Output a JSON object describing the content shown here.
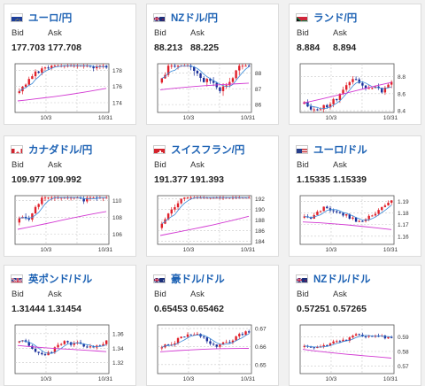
{
  "ui": {
    "bid_label": "Bid",
    "ask_label": "Ask"
  },
  "cards": [
    {
      "pair": "ユーロ/円",
      "flag": "flag-eu-icon",
      "bid": "177.703",
      "ask": "177.708",
      "yticks": [
        "178",
        "176",
        "174"
      ],
      "ylim": [
        172.8,
        178.8
      ],
      "xticks": [
        "10/3",
        "10/31"
      ],
      "open_start": 175.2,
      "drift": 0.12,
      "seed": 3,
      "wave": 1.1,
      "ma": [
        174.2,
        175.8
      ]
    },
    {
      "pair": "NZドル/円",
      "flag": "flag-nz-icon",
      "bid": "88.213",
      "ask": "88.225",
      "yticks": [
        "88",
        "87",
        "86"
      ],
      "ylim": [
        85.5,
        88.6
      ],
      "xticks": [
        "10/3",
        "10/31"
      ],
      "open_start": 87.4,
      "drift": 0.03,
      "seed": 7,
      "wave": 0.9,
      "ma": [
        86.9,
        87.4
      ]
    },
    {
      "pair": "ランド/円",
      "flag": "flag-za-icon",
      "bid": "8.884",
      "ask": "8.894",
      "yticks": [
        "8.8",
        "8.6",
        "8.4"
      ],
      "ylim": [
        8.38,
        8.95
      ],
      "xticks": [
        "10/3",
        "10/31"
      ],
      "open_start": 8.48,
      "drift": 0.014,
      "seed": 11,
      "wave": 0.12,
      "ma": [
        8.5,
        8.72
      ]
    },
    {
      "pair": "カナダドル/円",
      "flag": "flag-ca-icon",
      "bid": "109.977",
      "ask": "109.992",
      "yticks": [
        "110",
        "108",
        "106"
      ],
      "ylim": [
        104.8,
        110.6
      ],
      "xticks": [
        "10/3",
        "10/31"
      ],
      "open_start": 107.4,
      "drift": 0.1,
      "seed": 5,
      "wave": 1.2,
      "ma": [
        106.7,
        108.6
      ]
    },
    {
      "pair": "スイスフラン/円",
      "flag": "flag-ch-icon",
      "bid": "191.377",
      "ask": "191.393",
      "yticks": [
        "192",
        "190",
        "188",
        "186",
        "184"
      ],
      "ylim": [
        183.4,
        192.6
      ],
      "xticks": [
        "10/3",
        "10/31"
      ],
      "open_start": 186.5,
      "drift": 0.18,
      "seed": 9,
      "wave": 1.6,
      "ma": [
        185.0,
        188.8
      ]
    },
    {
      "pair": "ユーロ/ドル",
      "flag": "flag-us-icon",
      "bid": "1.15335",
      "ask": "1.15339",
      "yticks": [
        "1.19",
        "1.18",
        "1.17",
        "1.16"
      ],
      "ylim": [
        1.153,
        1.195
      ],
      "xticks": [
        "10/3",
        "10/31"
      ],
      "open_start": 1.176,
      "drift": -0.0006,
      "seed": 13,
      "wave": 0.006,
      "ma": [
        1.172,
        1.166
      ]
    },
    {
      "pair": "英ポンド/ドル",
      "flag": "flag-gb-icon",
      "bid": "1.31444",
      "ask": "1.31454",
      "yticks": [
        "1.36",
        "1.34",
        "1.32"
      ],
      "ylim": [
        1.305,
        1.372
      ],
      "xticks": [
        "10/3",
        "10/31"
      ],
      "open_start": 1.348,
      "drift": -0.0012,
      "seed": 17,
      "wave": 0.01,
      "ma": [
        1.345,
        1.334
      ]
    },
    {
      "pair": "豪ドル/ドル",
      "flag": "flag-au-icon",
      "bid": "0.65453",
      "ask": "0.65462",
      "yticks": [
        "0.67",
        "0.66",
        "0.65"
      ],
      "ylim": [
        0.645,
        0.672
      ],
      "xticks": [
        "10/3",
        "10/31"
      ],
      "open_start": 0.659,
      "drift": 0.0001,
      "seed": 19,
      "wave": 0.004,
      "ma": [
        0.657,
        0.659
      ]
    },
    {
      "pair": "NZドル/ドル",
      "flag": "flag-nz-icon",
      "bid": "0.57251",
      "ask": "0.57265",
      "yticks": [
        "0.59",
        "0.58",
        "0.57"
      ],
      "ylim": [
        0.565,
        0.598
      ],
      "xticks": [
        "10/3",
        "10/31"
      ],
      "open_start": 0.583,
      "drift": -0.0005,
      "seed": 23,
      "wave": 0.004,
      "ma": [
        0.582,
        0.575
      ]
    }
  ]
}
